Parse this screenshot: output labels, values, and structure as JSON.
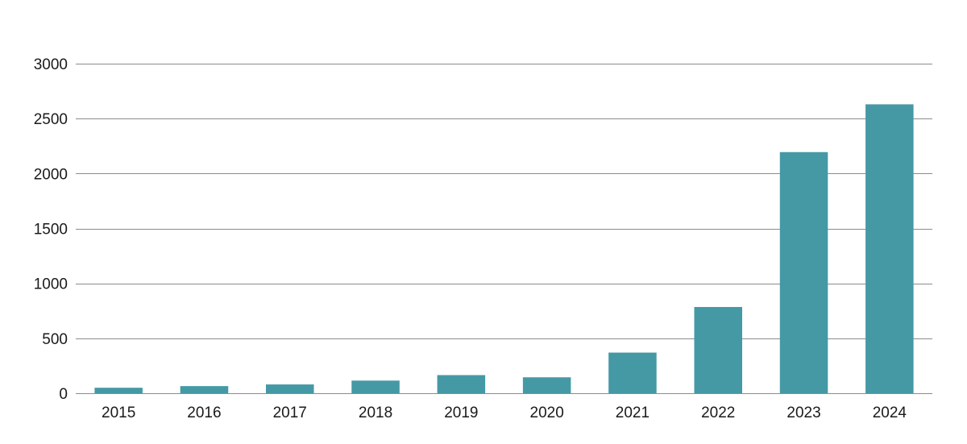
{
  "chart_data": {
    "type": "bar",
    "title": "",
    "xlabel": "",
    "ylabel": "",
    "categories": [
      "2015",
      "2016",
      "2017",
      "2018",
      "2019",
      "2020",
      "2021",
      "2022",
      "2023",
      "2024"
    ],
    "values": [
      50,
      65,
      80,
      115,
      165,
      145,
      370,
      785,
      2195,
      2630
    ],
    "ylim": [
      0,
      3000
    ],
    "yticks": [
      0,
      500,
      1000,
      1500,
      2000,
      2500,
      3000
    ],
    "grid": true,
    "legend": "none",
    "bar_color": "#4599a5"
  }
}
